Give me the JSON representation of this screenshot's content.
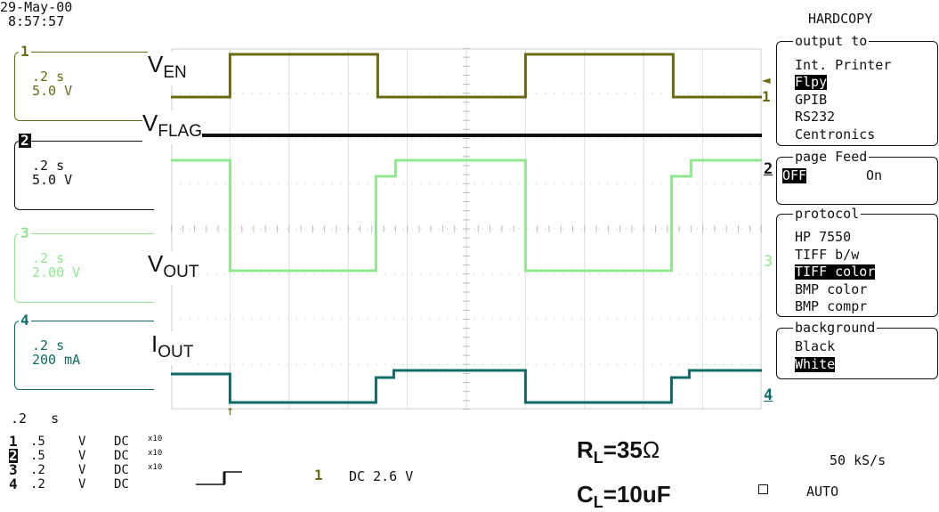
{
  "datetime": {
    "date": "29-May-00",
    "time": "8:57:57"
  },
  "channels": [
    {
      "number": "1",
      "timebase": ".2 s",
      "scale": "5.0 V",
      "color": "#6b6a14"
    },
    {
      "number": "2",
      "timebase": ".2 s",
      "scale": "5.0 V",
      "color": "#111111"
    },
    {
      "number": "3",
      "timebase": ".2 s",
      "scale": "2.00 V",
      "color": "#8fe88f"
    },
    {
      "number": "4",
      "timebase": ".2 s",
      "scale": "200 mA",
      "color": "#0f6a66"
    }
  ],
  "signal_labels": {
    "ven": {
      "main": "V",
      "sub": "EN"
    },
    "vflag": {
      "main": "V",
      "sub": "FLAG"
    },
    "vout": {
      "main": "V",
      "sub": "OUT"
    },
    "iout": {
      "main": "I",
      "sub": "OUT"
    }
  },
  "trace_markers": [
    "1",
    "2",
    "3",
    "4"
  ],
  "menu": {
    "title": "HARDCOPY",
    "output_to": {
      "title": "output to",
      "items": [
        "Int. Printer",
        "Flpy",
        "GPIB",
        "RS232",
        "Centronics"
      ],
      "selected": "Flpy"
    },
    "page_feed": {
      "title": "page Feed",
      "items": [
        "OFF",
        "On"
      ],
      "selected": "OFF"
    },
    "protocol": {
      "title": "protocol",
      "items": [
        "HP 7550",
        "TIFF b/w",
        "TIFF color",
        "BMP color",
        "BMP compr"
      ],
      "selected": "TIFF color"
    },
    "background": {
      "title": "background",
      "items": [
        "Black",
        "White"
      ],
      "selected": "White"
    }
  },
  "bottom": {
    "timebase": ".2   s",
    "channel_rows": [
      {
        "ch": "1",
        "volts": ".5",
        "unit": "V",
        "coupling": "DC",
        "probe": "x10"
      },
      {
        "ch": "2",
        "volts": ".5",
        "unit": "V",
        "coupling": "DC",
        "probe": "x10"
      },
      {
        "ch": "3",
        "volts": ".2",
        "unit": "V",
        "coupling": "DC",
        "probe": "x10"
      },
      {
        "ch": "4",
        "volts": ".2",
        "unit": "V",
        "coupling": "DC",
        "probe": ""
      }
    ],
    "trigger_channel": "1",
    "trigger_level": "DC 2.6 V",
    "sample_rate": "50 kS/s",
    "mode": "AUTO",
    "rl_label": {
      "main": "R",
      "sub": "L",
      "value": "=35",
      "unit": "Ω"
    },
    "cl_label": {
      "main": "C",
      "sub": "L",
      "value": "=10uF"
    }
  },
  "waveforms": {
    "ch1": {
      "low": 0,
      "high": 1,
      "transitions": [
        0.1,
        0.35,
        0.6,
        0.85
      ],
      "color": "#6b6a14"
    },
    "ch2": {
      "level": "constant",
      "color": "#111111"
    },
    "ch3": {
      "transitions": [
        0.1,
        0.35,
        0.6,
        0.85
      ],
      "color": "#8fe88f"
    },
    "ch4": {
      "transitions": [
        0.1,
        0.35,
        0.6,
        0.85
      ],
      "color": "#0f6a66"
    }
  }
}
